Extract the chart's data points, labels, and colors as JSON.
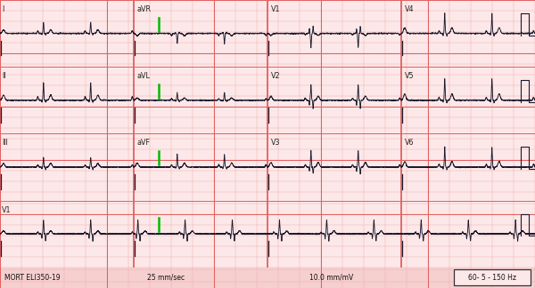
{
  "bg_color": "#fce8e8",
  "grid_major_color": "#e06060",
  "grid_minor_color": "#f0b0b0",
  "ecg_color": "#1a1a2e",
  "green_marker_color": "#00bb00",
  "fig_width": 6.0,
  "fig_height": 3.24,
  "dpi": 100,
  "footer_text_left": "MORT ELI350-19",
  "footer_text_center_left": "25 mm/sec",
  "footer_text_center_right": "10.0 mm/mV",
  "footer_text_right": "60- 5 - 150 Hz",
  "row_labels": [
    "I",
    "II",
    "III",
    "V1"
  ],
  "num_rows": 4,
  "minor_grid_n": 25,
  "major_grid_n": 5,
  "heart_rate": 68,
  "ecg_lw": 0.65
}
